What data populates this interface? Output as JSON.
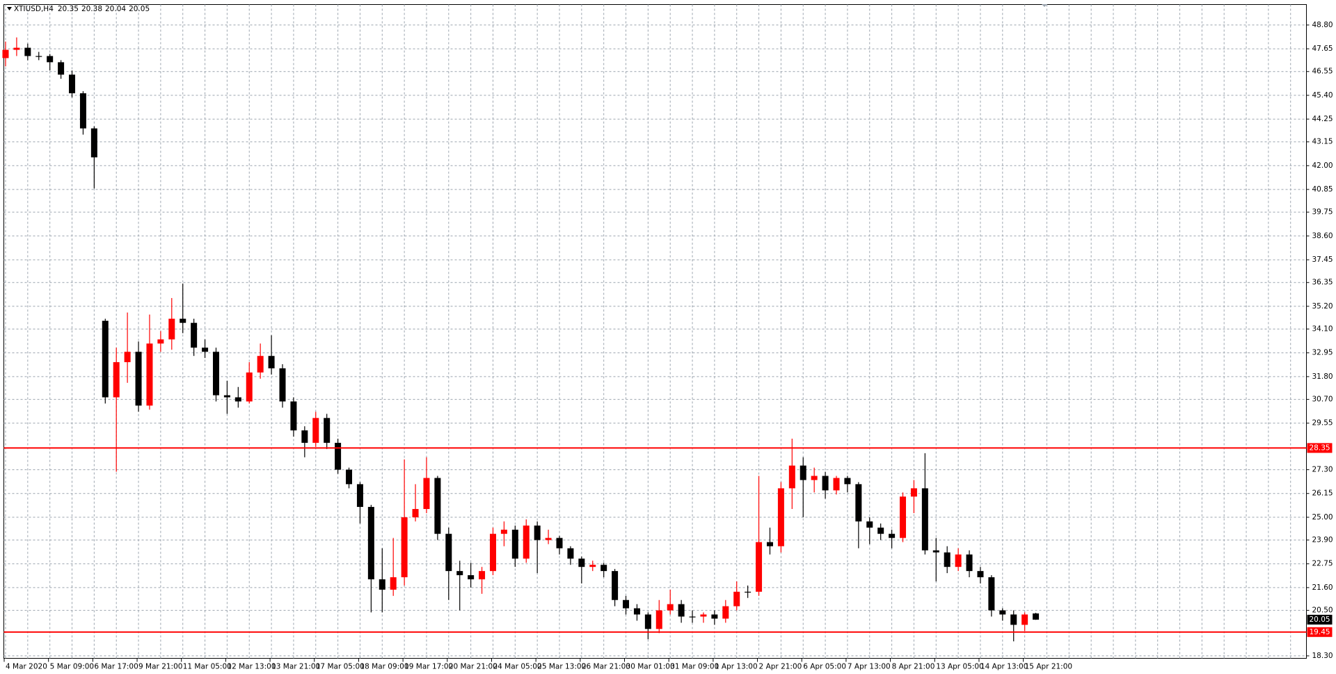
{
  "chart_data": {
    "type": "candlestick",
    "title": "XTIUSD,H4",
    "categories": [
      "4 Mar 2020",
      null,
      null,
      null,
      "5 Mar 09:00",
      null,
      null,
      null,
      "6 Mar 17:00",
      null,
      null,
      null,
      "9 Mar 21:00",
      null,
      null,
      null,
      "11 Mar 05:00",
      null,
      null,
      null,
      "12 Mar 13:00",
      null,
      null,
      null,
      "13 Mar 21:00",
      null,
      null,
      null,
      "17 Mar 05:00",
      null,
      null,
      null,
      "18 Mar 09:00",
      null,
      null,
      null,
      "19 Mar 17:00",
      null,
      null,
      null,
      "20 Mar 21:00",
      null,
      null,
      null,
      "24 Mar 05:00",
      null,
      null,
      null,
      "25 Mar 13:00",
      null,
      null,
      null,
      "26 Mar 21:00",
      null,
      null,
      null,
      "30 Mar 01:00",
      null,
      null,
      null,
      "31 Mar 09:00",
      null,
      null,
      null,
      "1 Apr 13:00",
      null,
      null,
      null,
      "2 Apr 21:00",
      null,
      null,
      null,
      "6 Apr 05:00",
      null,
      null,
      null,
      "7 Apr 13:00",
      null,
      null,
      null,
      "8 Apr 21:00",
      null,
      null,
      null,
      "13 Apr 05:00",
      null,
      null,
      null,
      "14 Apr 13:00",
      null,
      null,
      null,
      "15 Apr 21:00",
      null
    ],
    "open": [
      47.2,
      47.6,
      47.7,
      47.3,
      47.3,
      47.0,
      46.4,
      45.5,
      43.8,
      34.5,
      30.8,
      32.5,
      33.0,
      30.4,
      33.4,
      33.6,
      34.6,
      34.4,
      33.2,
      33.0,
      30.9,
      30.8,
      30.6,
      32.0,
      32.8,
      32.2,
      30.6,
      29.2,
      28.6,
      29.8,
      28.6,
      27.3,
      26.6,
      25.5,
      22.0,
      21.5,
      22.1,
      25.0,
      25.4,
      26.9,
      24.2,
      22.4,
      22.2,
      22.0,
      22.4,
      24.2,
      24.4,
      23.0,
      24.6,
      23.9,
      24.0,
      23.5,
      23.0,
      22.6,
      22.7,
      22.4,
      21.0,
      20.6,
      20.3,
      19.6,
      20.5,
      20.8,
      20.2,
      20.2,
      20.3,
      20.1,
      20.7,
      21.4,
      21.4,
      23.8,
      23.6,
      26.4,
      27.5,
      26.8,
      27.0,
      26.3,
      26.9,
      26.6,
      24.8,
      24.5,
      24.2,
      24.0,
      26.0,
      26.4,
      23.4,
      23.3,
      22.6,
      23.2,
      22.4,
      22.1,
      20.5,
      20.3,
      19.8,
      20.35
    ],
    "high": [
      48.0,
      48.2,
      47.9,
      47.5,
      47.4,
      47.1,
      46.6,
      45.6,
      43.9,
      34.6,
      33.2,
      34.9,
      33.5,
      34.8,
      34.0,
      35.6,
      36.3,
      34.6,
      33.6,
      33.2,
      31.6,
      31.3,
      32.5,
      33.4,
      33.8,
      32.4,
      30.8,
      29.4,
      30.1,
      30.0,
      28.8,
      27.4,
      26.7,
      25.6,
      23.5,
      24.0,
      27.8,
      26.6,
      27.9,
      27.0,
      24.5,
      22.9,
      22.8,
      22.6,
      24.5,
      24.8,
      24.6,
      24.9,
      24.8,
      24.4,
      24.1,
      23.6,
      23.1,
      22.9,
      22.8,
      22.5,
      21.2,
      20.8,
      20.4,
      21.0,
      21.5,
      21.0,
      20.5,
      20.4,
      20.5,
      21.0,
      21.9,
      21.7,
      27.0,
      24.5,
      26.7,
      28.8,
      27.9,
      27.4,
      27.2,
      27.0,
      27.0,
      26.7,
      25.0,
      24.7,
      24.4,
      26.2,
      26.8,
      28.1,
      24.0,
      23.6,
      23.5,
      23.4,
      22.6,
      22.2,
      20.6,
      20.5,
      20.4,
      20.38
    ],
    "low": [
      46.8,
      47.3,
      47.1,
      47.1,
      46.6,
      46.2,
      45.3,
      43.5,
      40.9,
      30.5,
      27.2,
      31.5,
      30.1,
      30.2,
      33.0,
      33.1,
      33.9,
      32.8,
      32.7,
      30.6,
      30.0,
      30.3,
      30.5,
      31.7,
      31.9,
      30.3,
      28.9,
      27.9,
      28.4,
      28.3,
      27.1,
      26.4,
      24.7,
      20.4,
      20.4,
      21.2,
      21.7,
      24.8,
      25.2,
      23.9,
      21.0,
      20.5,
      21.6,
      21.3,
      22.2,
      23.6,
      22.6,
      22.8,
      22.3,
      23.7,
      23.2,
      22.7,
      21.8,
      22.4,
      22.1,
      20.7,
      20.3,
      20.0,
      19.1,
      19.4,
      20.3,
      19.9,
      19.9,
      19.9,
      19.8,
      19.9,
      20.5,
      21.1,
      21.2,
      23.2,
      23.3,
      25.4,
      25.0,
      26.2,
      25.9,
      26.1,
      26.2,
      23.5,
      23.7,
      23.9,
      23.5,
      23.8,
      25.2,
      23.2,
      21.9,
      22.3,
      22.4,
      22.1,
      21.8,
      20.2,
      20.0,
      19.0,
      19.5,
      20.04
    ],
    "close": [
      47.6,
      47.7,
      47.3,
      47.3,
      47.0,
      46.4,
      45.5,
      43.8,
      42.4,
      30.8,
      32.5,
      33.0,
      30.4,
      33.4,
      33.6,
      34.6,
      34.4,
      33.2,
      33.0,
      30.9,
      30.8,
      30.6,
      32.0,
      32.8,
      32.2,
      30.6,
      29.2,
      28.6,
      29.8,
      28.6,
      27.3,
      26.6,
      25.5,
      22.0,
      21.5,
      22.1,
      25.0,
      25.4,
      26.9,
      24.2,
      22.4,
      22.2,
      22.0,
      22.4,
      24.2,
      24.4,
      23.0,
      24.6,
      23.9,
      24.0,
      23.5,
      23.0,
      22.6,
      22.7,
      22.4,
      21.0,
      20.6,
      20.3,
      19.6,
      20.5,
      20.8,
      20.2,
      20.2,
      20.3,
      20.1,
      20.7,
      21.4,
      21.4,
      23.8,
      23.6,
      26.4,
      27.5,
      26.8,
      27.0,
      26.3,
      26.9,
      26.6,
      24.8,
      24.5,
      24.2,
      24.0,
      26.0,
      26.4,
      23.4,
      23.3,
      22.6,
      23.2,
      22.4,
      22.1,
      20.5,
      20.3,
      19.8,
      20.3,
      20.05
    ],
    "up_color": "#ff0000",
    "down_color": "#000000",
    "ylim": [
      18.18,
      49.79
    ],
    "yticks": [
      {
        "value": 18.3,
        "label": "18.30"
      },
      {
        "value": 20.5,
        "label": "20.50"
      },
      {
        "value": 21.6,
        "label": "21.60"
      },
      22.75,
      {
        "value": 23.9,
        "label": "23.90"
      },
      {
        "value": 25,
        "label": "25.00"
      },
      26.15,
      {
        "value": 27.3,
        "label": "27.30"
      },
      29.55,
      {
        "value": 30.7,
        "label": "30.70"
      },
      {
        "value": 31.8,
        "label": "31.80"
      },
      32.95,
      {
        "value": 34.1,
        "label": "34.10"
      },
      {
        "value": 35.2,
        "label": "35.20"
      },
      36.35,
      37.45,
      {
        "value": 38.6,
        "label": "38.60"
      },
      39.75,
      40.85,
      {
        "value": 42,
        "label": "42.00"
      },
      43.15,
      44.25,
      {
        "value": 45.4,
        "label": "45.40"
      },
      46.55,
      47.65,
      {
        "value": 48.8,
        "label": "48.80"
      }
    ],
    "hlines": [
      28.35,
      19.45
    ],
    "hline_color": "#ff0000",
    "grid": true
  }
}
